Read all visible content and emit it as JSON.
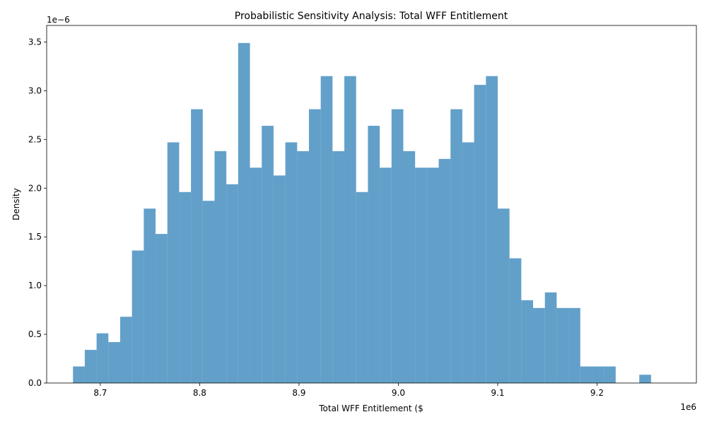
{
  "chart_data": {
    "type": "bar",
    "subtype": "histogram",
    "title": "Probabilistic Sensitivity Analysis: Total WFF Entitlement",
    "xlabel": "Total WFF Entitlement ($",
    "ylabel": "Density",
    "x_multiplier_label": "1e6",
    "y_multiplier_label": "1e−6",
    "xlim": [
      8.646,
      9.3
    ],
    "ylim": [
      0,
      3.67
    ],
    "x_ticks": [
      8.7,
      8.8,
      8.9,
      9.0,
      9.1,
      9.2
    ],
    "x_tick_labels": [
      "8.7",
      "8.8",
      "8.9",
      "9.0",
      "9.1",
      "9.2"
    ],
    "y_ticks": [
      0,
      0.5,
      1.0,
      1.5,
      2.0,
      2.5,
      3.0,
      3.5
    ],
    "y_tick_labels": [
      "0.0",
      "0.5",
      "1.0",
      "1.5",
      "2.0",
      "2.5",
      "3.0",
      "3.5"
    ],
    "bin_start": 8.6725,
    "bin_width": 0.011875,
    "values": [
      0.17,
      0.34,
      0.51,
      0.42,
      0.68,
      1.36,
      1.79,
      1.53,
      2.47,
      1.96,
      2.81,
      1.87,
      2.38,
      2.04,
      3.49,
      2.21,
      2.64,
      2.13,
      2.47,
      2.38,
      2.81,
      3.15,
      2.38,
      3.15,
      1.96,
      2.64,
      2.21,
      2.81,
      2.38,
      2.21,
      2.21,
      2.3,
      2.81,
      2.47,
      3.06,
      3.15,
      1.79,
      1.28,
      0.85,
      0.77,
      0.93,
      0.77,
      0.77,
      0.17,
      0.17,
      0.17,
      0,
      0,
      0.085
    ],
    "bar_color": "#1f77b4",
    "bar_opacity": 0.7,
    "grid": false,
    "legend": "none"
  }
}
